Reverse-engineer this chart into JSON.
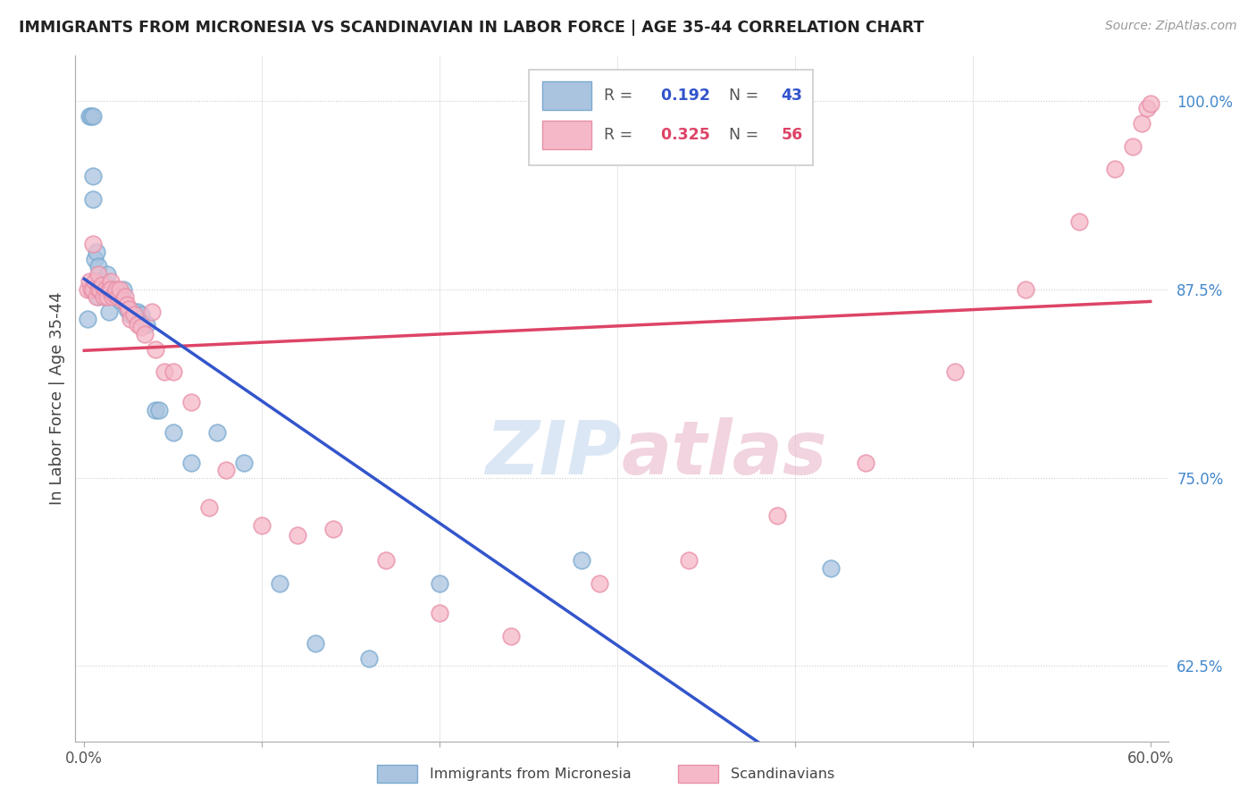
{
  "title": "IMMIGRANTS FROM MICRONESIA VS SCANDINAVIAN IN LABOR FORCE | AGE 35-44 CORRELATION CHART",
  "source": "Source: ZipAtlas.com",
  "ylabel": "In Labor Force | Age 35-44",
  "y_ticks": [
    0.625,
    0.75,
    0.875,
    1.0
  ],
  "y_tick_labels": [
    "62.5%",
    "75.0%",
    "87.5%",
    "100.0%"
  ],
  "blue_label": "Immigrants from Micronesia",
  "pink_label": "Scandinavians",
  "blue_R": 0.192,
  "blue_N": 43,
  "pink_R": 0.325,
  "pink_N": 56,
  "blue_color": "#aac4e0",
  "pink_color": "#f5b8c8",
  "blue_edge": "#7aaad0",
  "pink_edge": "#e890a8",
  "blue_line_color": "#3355cc",
  "pink_line_color": "#dd4466",
  "watermark_blue": "#c5d8ef",
  "watermark_pink": "#e8b8cc",
  "blue_x": [
    0.002,
    0.003,
    0.004,
    0.005,
    0.005,
    0.005,
    0.006,
    0.007,
    0.007,
    0.008,
    0.008,
    0.009,
    0.01,
    0.011,
    0.012,
    0.013,
    0.014,
    0.015,
    0.015,
    0.016,
    0.017,
    0.018,
    0.02,
    0.022,
    0.024,
    0.025,
    0.026,
    0.028,
    0.03,
    0.032,
    0.035,
    0.04,
    0.042,
    0.05,
    0.06,
    0.075,
    0.09,
    0.11,
    0.13,
    0.16,
    0.2,
    0.28,
    0.42
  ],
  "blue_y": [
    0.855,
    0.99,
    0.99,
    0.99,
    0.95,
    0.935,
    0.895,
    0.9,
    0.875,
    0.89,
    0.87,
    0.88,
    0.88,
    0.88,
    0.87,
    0.885,
    0.86,
    0.875,
    0.875,
    0.875,
    0.875,
    0.875,
    0.868,
    0.875,
    0.862,
    0.862,
    0.858,
    0.86,
    0.86,
    0.858,
    0.852,
    0.795,
    0.795,
    0.78,
    0.76,
    0.78,
    0.76,
    0.68,
    0.64,
    0.63,
    0.68,
    0.695,
    0.69
  ],
  "pink_x": [
    0.002,
    0.003,
    0.004,
    0.005,
    0.005,
    0.006,
    0.007,
    0.008,
    0.008,
    0.009,
    0.01,
    0.011,
    0.012,
    0.013,
    0.014,
    0.015,
    0.015,
    0.016,
    0.017,
    0.018,
    0.019,
    0.02,
    0.022,
    0.023,
    0.024,
    0.025,
    0.026,
    0.028,
    0.03,
    0.032,
    0.034,
    0.038,
    0.04,
    0.045,
    0.05,
    0.06,
    0.07,
    0.08,
    0.1,
    0.12,
    0.14,
    0.17,
    0.2,
    0.24,
    0.29,
    0.34,
    0.39,
    0.44,
    0.49,
    0.53,
    0.56,
    0.58,
    0.59,
    0.595,
    0.598,
    0.6
  ],
  "pink_y": [
    0.875,
    0.88,
    0.875,
    0.905,
    0.875,
    0.88,
    0.87,
    0.885,
    0.875,
    0.875,
    0.878,
    0.87,
    0.875,
    0.87,
    0.875,
    0.88,
    0.875,
    0.87,
    0.872,
    0.875,
    0.87,
    0.875,
    0.868,
    0.87,
    0.865,
    0.862,
    0.855,
    0.858,
    0.852,
    0.85,
    0.845,
    0.86,
    0.835,
    0.82,
    0.82,
    0.8,
    0.73,
    0.755,
    0.718,
    0.712,
    0.716,
    0.695,
    0.66,
    0.645,
    0.68,
    0.695,
    0.725,
    0.76,
    0.82,
    0.875,
    0.92,
    0.955,
    0.97,
    0.985,
    0.995,
    0.998
  ],
  "xlim": [
    0.0,
    0.6
  ],
  "ylim": [
    0.575,
    1.03
  ]
}
